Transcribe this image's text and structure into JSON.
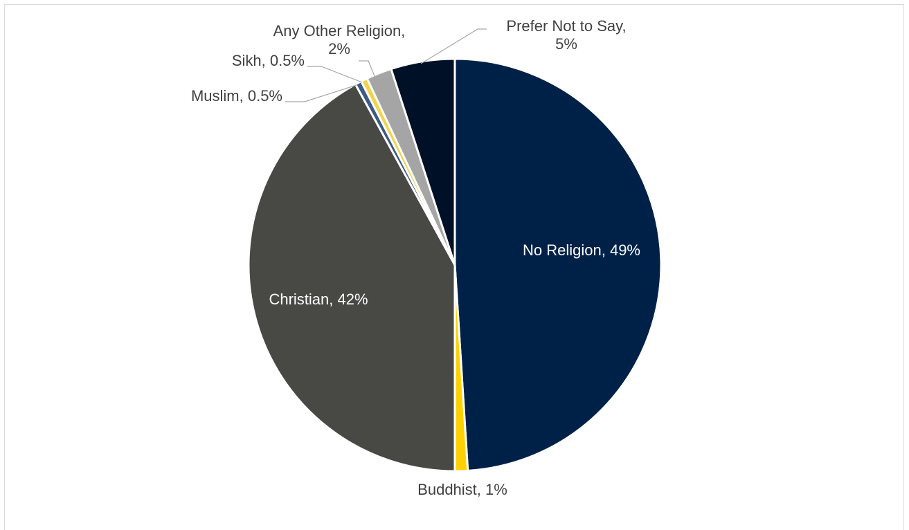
{
  "chart_data": {
    "type": "pie",
    "title": "",
    "slices": [
      {
        "key": "no_religion",
        "category": "No Religion",
        "value": 49,
        "pct_label": "49%",
        "color": "#002147",
        "label_lines": [
          "No Religion, 49%"
        ],
        "label_inside": true
      },
      {
        "key": "buddhist",
        "category": "Buddhist",
        "value": 1,
        "pct_label": "1%",
        "color": "#ffd100",
        "label_lines": [
          "Buddhist, 1%"
        ],
        "label_inside": false
      },
      {
        "key": "christian",
        "category": "Christian",
        "value": 42,
        "pct_label": "42%",
        "color": "#484844",
        "label_lines": [
          "Christian, 42%"
        ],
        "label_inside": true
      },
      {
        "key": "muslim",
        "category": "Muslim",
        "value": 0.5,
        "pct_label": "0.5%",
        "color": "#3b5a8a",
        "label_lines": [
          "Muslim, 0.5%"
        ],
        "label_inside": false
      },
      {
        "key": "sikh",
        "category": "Sikh",
        "value": 0.5,
        "pct_label": "0.5%",
        "color": "#f2d34f",
        "label_lines": [
          "Sikh, 0.5%"
        ],
        "label_inside": false
      },
      {
        "key": "other",
        "category": "Any Other Religion",
        "value": 2,
        "pct_label": "2%",
        "color": "#a5a5a5",
        "label_lines": [
          "Any Other Religion,",
          "2%"
        ],
        "label_inside": false
      },
      {
        "key": "prefer_not",
        "category": "Prefer Not to Say",
        "value": 5,
        "pct_label": "5%",
        "color": "#001027",
        "label_lines": [
          "Prefer Not to Say,",
          "5%"
        ],
        "label_inside": false
      }
    ],
    "legend": "none",
    "start_angle": "12 o'clock",
    "direction": "clockwise",
    "label_color_outside": "#404040",
    "label_color_inside": "#ffffff",
    "leader_line_color": "#a6a6a6"
  }
}
